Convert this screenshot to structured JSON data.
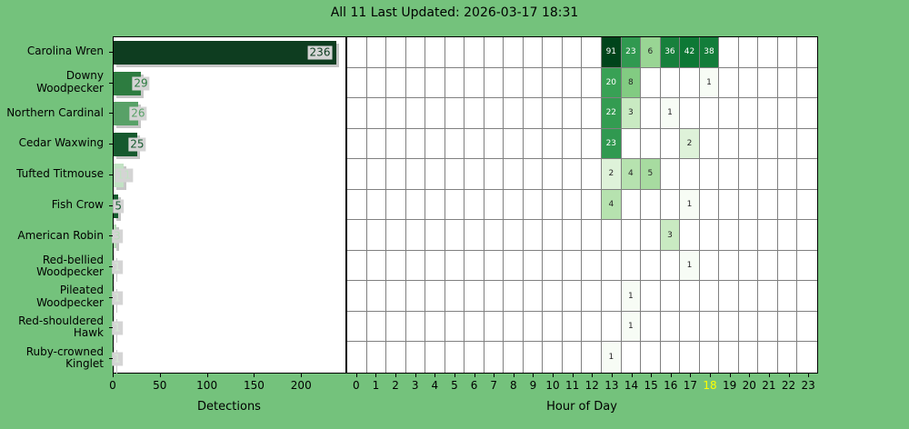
{
  "title": "All 11 Last Updated: 2026-03-17 18:31",
  "colors": {
    "background": "#74c27c",
    "plot_background": "#ffffff",
    "grid_line": "#808080",
    "axis_line": "#000000",
    "value_label_bbox": "#d4d4d4",
    "bar_shadow": "#c6c6c6",
    "highlighted_tick": "#ffff00",
    "heatmap_text_light": "#ffffff",
    "heatmap_text_dark": "#262626",
    "greens_colormap": [
      "#f7fcf5",
      "#e5f5e0",
      "#c7e9c0",
      "#a1d99b",
      "#74c476",
      "#41ab5d",
      "#238b45",
      "#006d2c",
      "#00441b"
    ]
  },
  "chart_data": [
    {
      "type": "bar",
      "orientation": "horizontal",
      "xlabel": "Detections",
      "xticks": [
        0,
        50,
        100,
        150,
        200
      ],
      "xlim": [
        0,
        248
      ],
      "categories": [
        "Carolina Wren",
        "Downy Woodpecker",
        "Northern Cardinal",
        "Cedar Waxwing",
        "Tufted Titmouse",
        "Fish Crow",
        "American Robin",
        "Red-bellied Woodpecker",
        "Pileated Woodpecker",
        "Red-shouldered Hawk",
        "Ruby-crowned Kinglet"
      ],
      "category_lines": [
        [
          "Carolina Wren"
        ],
        [
          "Downy",
          "Woodpecker"
        ],
        [
          "Northern Cardinal"
        ],
        [
          "Cedar Waxwing"
        ],
        [
          "Tufted Titmouse"
        ],
        [
          "Fish Crow"
        ],
        [
          "American Robin"
        ],
        [
          "Red-bellied",
          "Woodpecker"
        ],
        [
          "Pileated",
          "Woodpecker"
        ],
        [
          "Red-shouldered",
          "Hawk"
        ],
        [
          "Ruby-crowned",
          "Kinglet"
        ]
      ],
      "values": [
        236,
        29,
        26,
        25,
        11,
        5,
        3,
        1,
        1,
        1,
        1
      ],
      "bar_colors": [
        "#0e3d20",
        "#2d7c40",
        "#58a167",
        "#16592e",
        "#c2e2c4",
        "#175c30",
        "#b9dcba",
        "#d8ead6",
        "#d8ead6",
        "#d8ead6",
        "#d8ead6"
      ]
    },
    {
      "type": "heatmap",
      "xlabel": "Hour of Day",
      "x": [
        0,
        1,
        2,
        3,
        4,
        5,
        6,
        7,
        8,
        9,
        10,
        11,
        12,
        13,
        14,
        15,
        16,
        17,
        18,
        19,
        20,
        21,
        22,
        23
      ],
      "highlighted_hour": 18,
      "norm": "log",
      "vmax": 91,
      "series": [
        {
          "name": "Carolina Wren",
          "cells": {
            "13": 91,
            "14": 23,
            "15": 6,
            "16": 36,
            "17": 42,
            "18": 38
          }
        },
        {
          "name": "Downy Woodpecker",
          "cells": {
            "13": 20,
            "14": 8,
            "18": 1
          }
        },
        {
          "name": "Northern Cardinal",
          "cells": {
            "13": 22,
            "14": 3,
            "16": 1
          }
        },
        {
          "name": "Cedar Waxwing",
          "cells": {
            "13": 23,
            "17": 2
          }
        },
        {
          "name": "Tufted Titmouse",
          "cells": {
            "13": 2,
            "14": 4,
            "15": 5
          }
        },
        {
          "name": "Fish Crow",
          "cells": {
            "13": 4,
            "17": 1
          }
        },
        {
          "name": "American Robin",
          "cells": {
            "16": 3
          }
        },
        {
          "name": "Red-bellied Woodpecker",
          "cells": {
            "17": 1
          }
        },
        {
          "name": "Pileated Woodpecker",
          "cells": {
            "14": 1
          }
        },
        {
          "name": "Red-shouldered Hawk",
          "cells": {
            "14": 1
          }
        },
        {
          "name": "Ruby-crowned Kinglet",
          "cells": {
            "13": 1
          }
        }
      ]
    }
  ]
}
